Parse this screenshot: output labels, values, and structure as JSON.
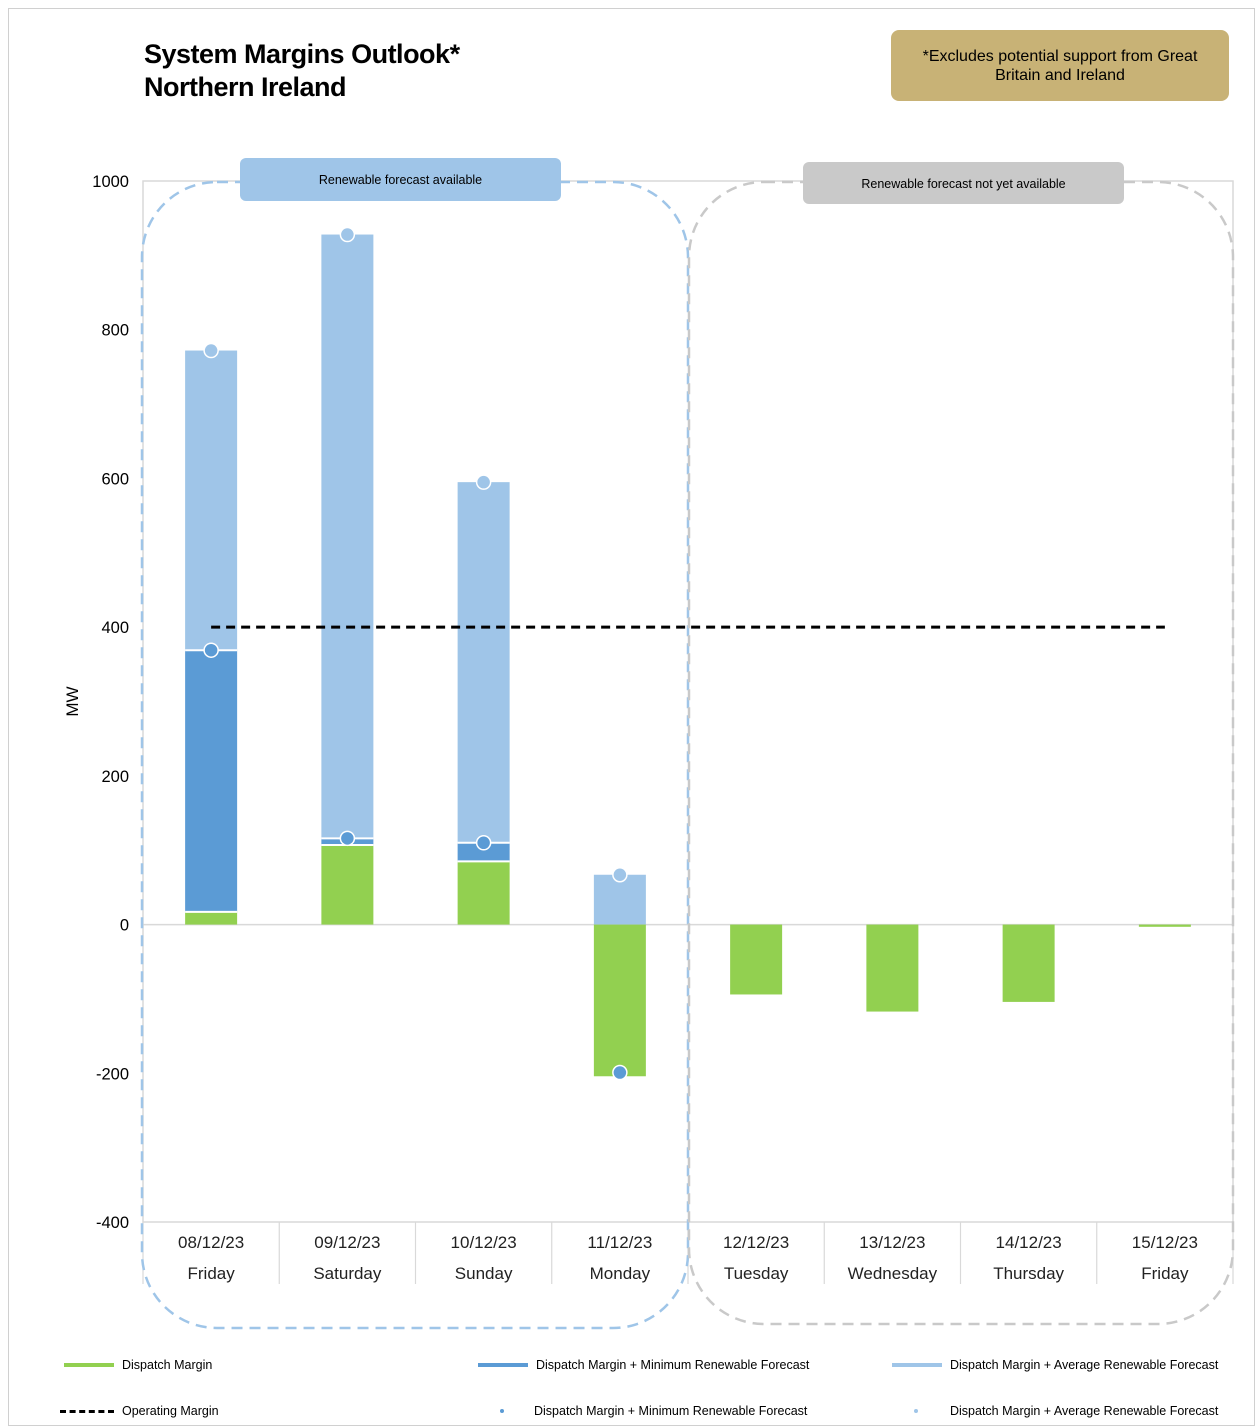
{
  "title_lines": [
    "System Margins Outlook*",
    "Northern Ireland"
  ],
  "note": "*Excludes potential support from Great Britain and Ireland",
  "panels": {
    "available": "Renewable forecast available",
    "not_available": "Renewable forecast not yet available"
  },
  "colors": {
    "dispatch": "#92d050",
    "min_renewable": "#5b9bd5",
    "avg_renewable": "#9fc5e8",
    "operating": "#000000",
    "panel_available": "#9fc5e8",
    "panel_not_available": "#c9c9c9",
    "grid": "#d9d9d9"
  },
  "chart_data": {
    "type": "bar",
    "ylabel": "MW",
    "ylim": [
      -400,
      1000
    ],
    "yticks": [
      1000,
      800,
      600,
      400,
      200,
      0,
      -200,
      -400
    ],
    "categories": [
      {
        "date": "08/12/23",
        "day": "Friday"
      },
      {
        "date": "09/12/23",
        "day": "Saturday"
      },
      {
        "date": "10/12/23",
        "day": "Sunday"
      },
      {
        "date": "11/12/23",
        "day": "Monday"
      },
      {
        "date": "12/12/23",
        "day": "Tuesday"
      },
      {
        "date": "13/12/23",
        "day": "Wednesday"
      },
      {
        "date": "14/12/23",
        "day": "Thursday"
      },
      {
        "date": "15/12/23",
        "day": "Friday"
      }
    ],
    "series": [
      {
        "name": "Dispatch Margin",
        "values": [
          17,
          107,
          85,
          -204,
          -94,
          -117,
          -104,
          -3
        ]
      },
      {
        "name": "Dispatch Margin + Minimum Renewable Forecast",
        "values": [
          369,
          116,
          110,
          -199,
          null,
          null,
          null,
          null
        ]
      },
      {
        "name": "Dispatch Margin + Average Renewable Forecast",
        "values": [
          772,
          928,
          595,
          67,
          null,
          null,
          null,
          null
        ]
      },
      {
        "name": "Operating Margin",
        "values": [
          400,
          400,
          400,
          400,
          400,
          400,
          400,
          400
        ]
      }
    ],
    "grid": true
  },
  "legend": {
    "dispatch": "Dispatch Margin",
    "min_line": "Dispatch Margin + Minimum Renewable Forecast",
    "avg_line": "Dispatch Margin + Average Renewable Forecast",
    "operating": "Operating Margin",
    "min_marker": "Dispatch Margin + Minimum Renewable Forecast",
    "avg_marker": "Dispatch Margin + Average Renewable Forecast"
  }
}
